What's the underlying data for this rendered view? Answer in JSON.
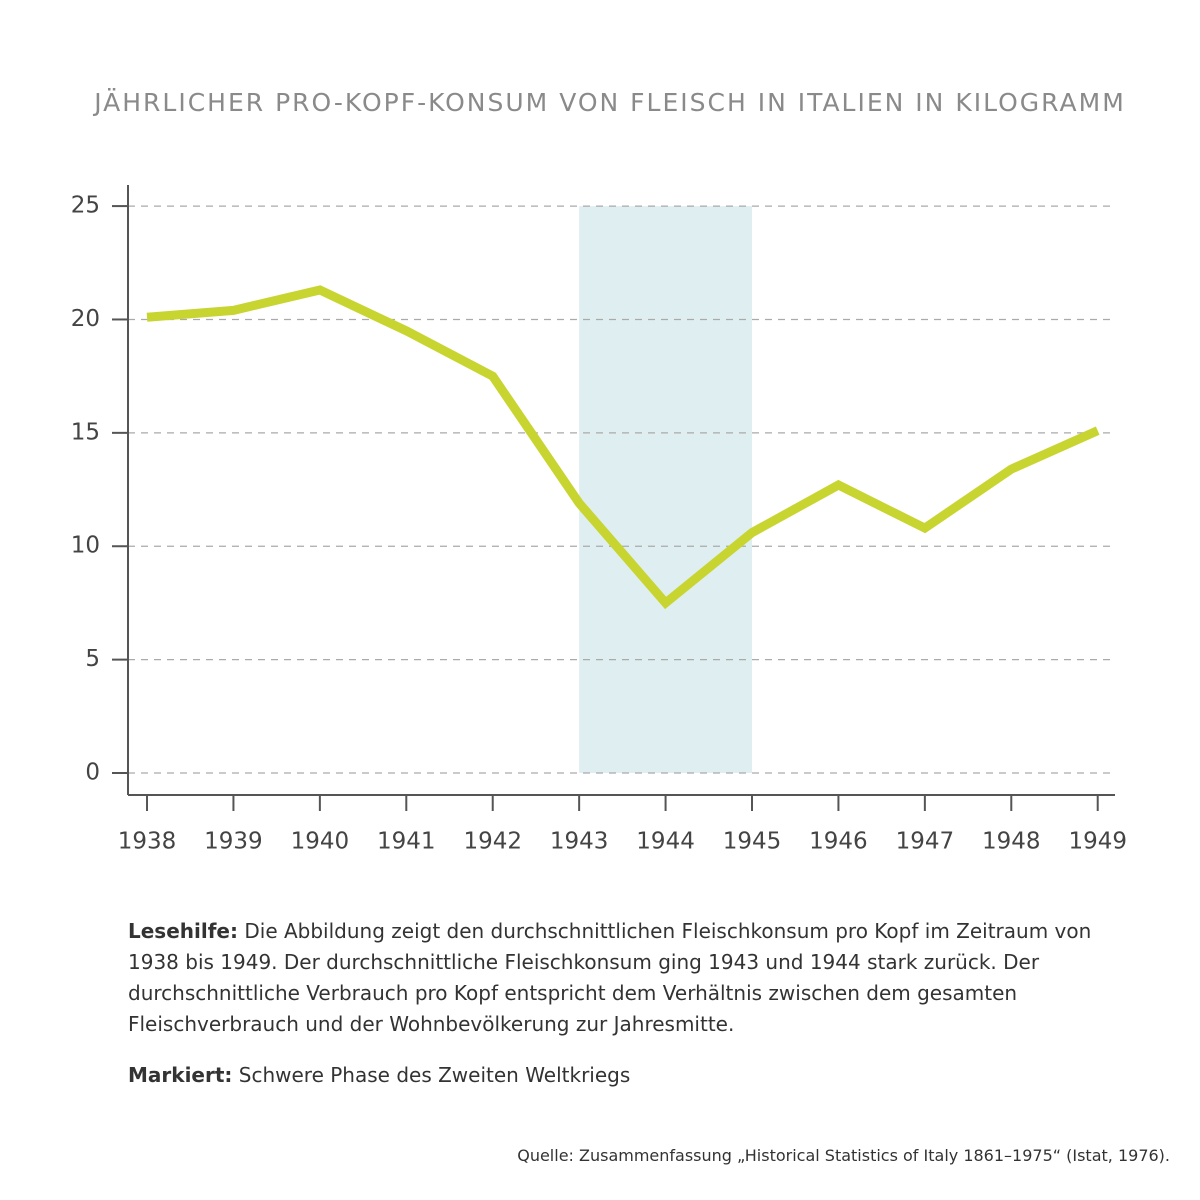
{
  "chart_data": {
    "type": "line",
    "title": "JÄHRLICHER PRO-KOPF-KONSUM VON FLEISCH IN ITALIEN IN KILOGRAMM",
    "x": [
      1938,
      1939,
      1940,
      1941,
      1942,
      1943,
      1944,
      1945,
      1946,
      1947,
      1948,
      1949
    ],
    "values": [
      20.1,
      20.4,
      21.3,
      19.5,
      17.5,
      11.9,
      7.5,
      10.6,
      12.7,
      10.8,
      13.4,
      15.1
    ],
    "color": "#c8d531",
    "xlim": [
      1937.78,
      1949.2
    ],
    "xticks": [
      1938,
      1939,
      1940,
      1941,
      1942,
      1943,
      1944,
      1945,
      1946,
      1947,
      1948,
      1949
    ],
    "ylim": [
      -0.97,
      25.93
    ],
    "yticks": [
      0,
      5,
      10,
      15,
      20,
      25
    ],
    "grid": true,
    "highlight": {
      "x": [
        1943,
        1945
      ],
      "color": "#dfeef0"
    }
  },
  "notes": [
    {
      "label": "Lesehilfe:",
      "text": "Die Abbildung zeigt den durchschnittlichen Fleischkonsum pro Kopf im Zeitraum von 1938 bis 1949. Der durchschnittliche Fleischkonsum ging 1943 und 1944 stark zurück. Der durchschnittliche Verbrauch pro Kopf entspricht dem Verhältnis zwischen dem gesamten Fleischverbrauch und der Wohnbevölkerung zur Jahresmitte."
    },
    {
      "label": "Markiert:",
      "text": "Schwere Phase des Zweiten Weltkriegs"
    }
  ],
  "source": "Quelle: Zusammenfassung „Historical Statistics of Italy 1861–1975“ (Istat, 1976)."
}
